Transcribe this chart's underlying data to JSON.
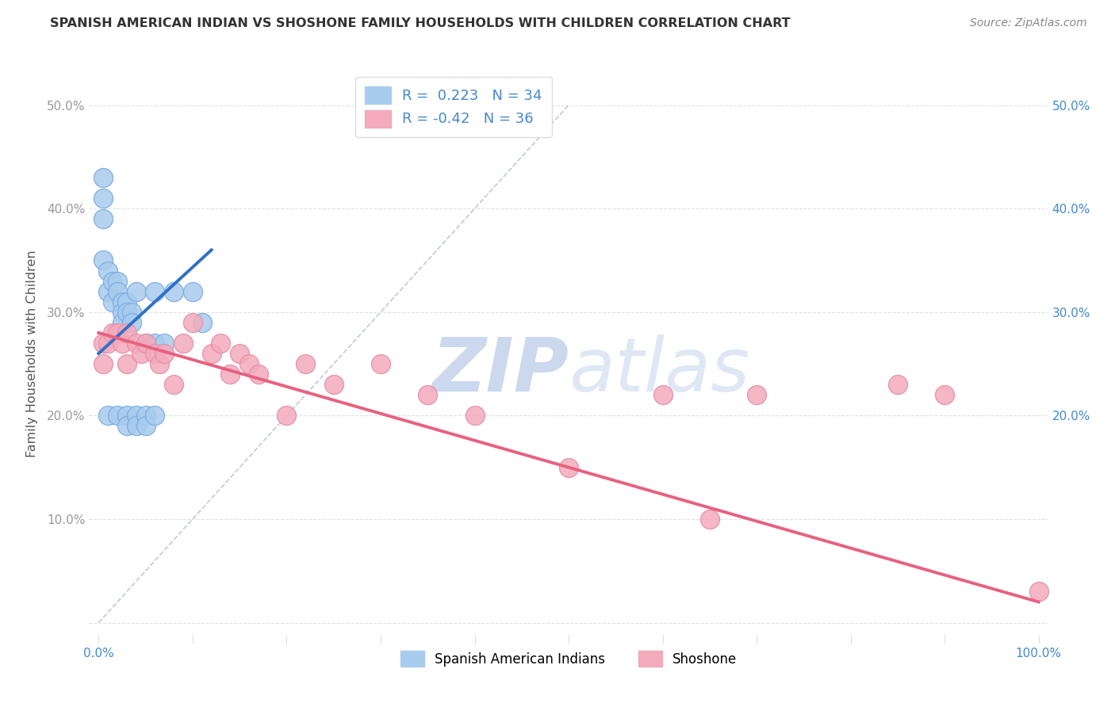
{
  "title": "SPANISH AMERICAN INDIAN VS SHOSHONE FAMILY HOUSEHOLDS WITH CHILDREN CORRELATION CHART",
  "source": "Source: ZipAtlas.com",
  "ylabel": "Family Households with Children",
  "blue_R": 0.223,
  "blue_N": 34,
  "pink_R": -0.42,
  "pink_N": 36,
  "legend_label_blue": "Spanish American Indians",
  "legend_label_pink": "Shoshone",
  "blue_color": "#A8CCEE",
  "pink_color": "#F4AABB",
  "blue_line_color": "#3070C8",
  "pink_line_color": "#E86080",
  "diagonal_color": "#C0C8E0",
  "blue_scatter_x": [
    0.5,
    0.5,
    0.5,
    0.5,
    1.0,
    1.0,
    1.5,
    1.5,
    2.0,
    2.0,
    2.5,
    2.5,
    2.5,
    3.0,
    3.0,
    3.5,
    3.5,
    4.0,
    5.0,
    6.0,
    6.0,
    7.0,
    8.0,
    10.0,
    11.0,
    1.0,
    2.0,
    3.0,
    3.0,
    4.0,
    4.0,
    5.0,
    5.0,
    6.0
  ],
  "blue_scatter_y": [
    43,
    41,
    39,
    35,
    34,
    32,
    33,
    31,
    33,
    32,
    31,
    30,
    29,
    31,
    30,
    30,
    29,
    32,
    27,
    32,
    27,
    27,
    32,
    32,
    29,
    20,
    20,
    20,
    19,
    20,
    19,
    20,
    19,
    20
  ],
  "pink_scatter_x": [
    0.5,
    0.5,
    1.0,
    1.5,
    2.0,
    2.5,
    3.0,
    3.0,
    4.0,
    4.5,
    5.0,
    6.0,
    6.5,
    7.0,
    8.0,
    9.0,
    10.0,
    12.0,
    13.0,
    14.0,
    15.0,
    16.0,
    17.0,
    20.0,
    22.0,
    25.0,
    30.0,
    35.0,
    40.0,
    50.0,
    60.0,
    65.0,
    70.0,
    85.0,
    90.0,
    100.0
  ],
  "pink_scatter_y": [
    27,
    25,
    27,
    28,
    28,
    27,
    28,
    25,
    27,
    26,
    27,
    26,
    25,
    26,
    23,
    27,
    29,
    26,
    27,
    24,
    26,
    25,
    24,
    20,
    25,
    23,
    25,
    22,
    20,
    15,
    22,
    10,
    22,
    23,
    22,
    3
  ],
  "background_color": "#FFFFFF",
  "grid_color": "#E0E0E8",
  "ytick_values": [
    0,
    10,
    20,
    30,
    40,
    50
  ],
  "xtick_values": [
    0,
    10,
    20,
    30,
    40,
    50,
    60,
    70,
    80,
    90,
    100
  ],
  "right_ytick_values": [
    20,
    30,
    40,
    50
  ],
  "watermark_text": "ZIPatlas",
  "watermark_color": "#CBD8EE",
  "blue_line_x": [
    0,
    12
  ],
  "blue_line_y_start": 26,
  "blue_line_y_end": 36,
  "pink_line_x": [
    0,
    100
  ],
  "pink_line_y_start": 28,
  "pink_line_y_end": 2
}
